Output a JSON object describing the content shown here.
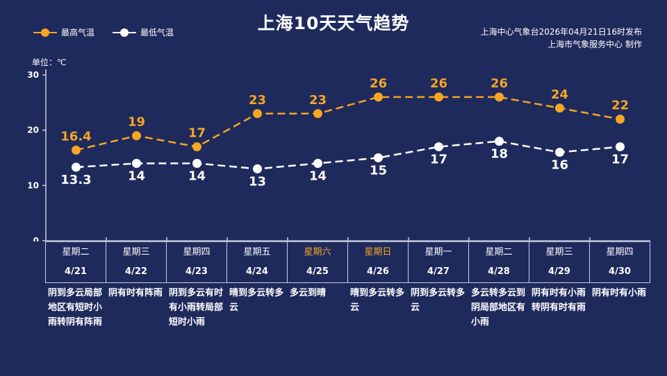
{
  "header": {
    "title": "上海10天天气趋势",
    "issuer_line1": "上海中心气象台2026年04月21日16时发布",
    "issuer_line2": "上海市气象服务中心  制作"
  },
  "legend": {
    "high_label": "最高气温",
    "low_label": "最低气温"
  },
  "unit_label": "单位：℃",
  "colors": {
    "background": "#1f2a5c",
    "high": "#f5a623",
    "low": "#ffffff",
    "weekend": "#f5a623",
    "axis": "#c9cde0"
  },
  "days": [
    {
      "weekday": "星期二",
      "date": "4/21",
      "condition": "阴到多云局部地区有短时小雨转阴有阵雨",
      "weekend": false
    },
    {
      "weekday": "星期三",
      "date": "4/22",
      "condition": "阴有时有阵雨",
      "weekend": false
    },
    {
      "weekday": "星期四",
      "date": "4/23",
      "condition": "阴到多云有时有小雨转局部短时小雨",
      "weekend": false
    },
    {
      "weekday": "星期五",
      "date": "4/24",
      "condition": "晴到多云转多云",
      "weekend": false
    },
    {
      "weekday": "星期六",
      "date": "4/25",
      "condition": "多云到晴",
      "weekend": true
    },
    {
      "weekday": "星期日",
      "date": "4/26",
      "condition": "晴到多云转多云",
      "weekend": true
    },
    {
      "weekday": "星期一",
      "date": "4/27",
      "condition": "阴到多云转多云",
      "weekend": false
    },
    {
      "weekday": "星期二",
      "date": "4/28",
      "condition": "多云转多云到阴局部地区有小雨",
      "weekend": false
    },
    {
      "weekday": "星期三",
      "date": "4/29",
      "condition": "阴有时有小雨转阴有时有雨",
      "weekend": false
    },
    {
      "weekday": "星期四",
      "date": "4/30",
      "condition": "阴有时有小雨",
      "weekend": false
    }
  ],
  "chart_data": {
    "type": "line",
    "title": "上海10天天气趋势",
    "ylabel": "单位：℃",
    "categories": [
      "4/21",
      "4/22",
      "4/23",
      "4/24",
      "4/25",
      "4/26",
      "4/27",
      "4/28",
      "4/29",
      "4/30"
    ],
    "ylim": [
      0,
      30
    ],
    "yticks": [
      0,
      10,
      20,
      30
    ],
    "grid": false,
    "legend_position": "top-left",
    "series": [
      {
        "name": "最高气温",
        "values": [
          16.4,
          19,
          17,
          23,
          23,
          26,
          26,
          26,
          24,
          22
        ],
        "labels": [
          "16.4",
          "19",
          "17",
          "23",
          "23",
          "26",
          "26",
          "26",
          "24",
          "22"
        ],
        "color": "#f5a623",
        "label_position": "above"
      },
      {
        "name": "最低气温",
        "values": [
          13.3,
          14,
          14,
          13,
          14,
          15,
          17,
          18,
          16,
          17
        ],
        "labels": [
          "13.3",
          "14",
          "14",
          "13",
          "14",
          "15",
          "17",
          "18",
          "16",
          "17"
        ],
        "color": "#ffffff",
        "label_position": "below"
      }
    ]
  }
}
